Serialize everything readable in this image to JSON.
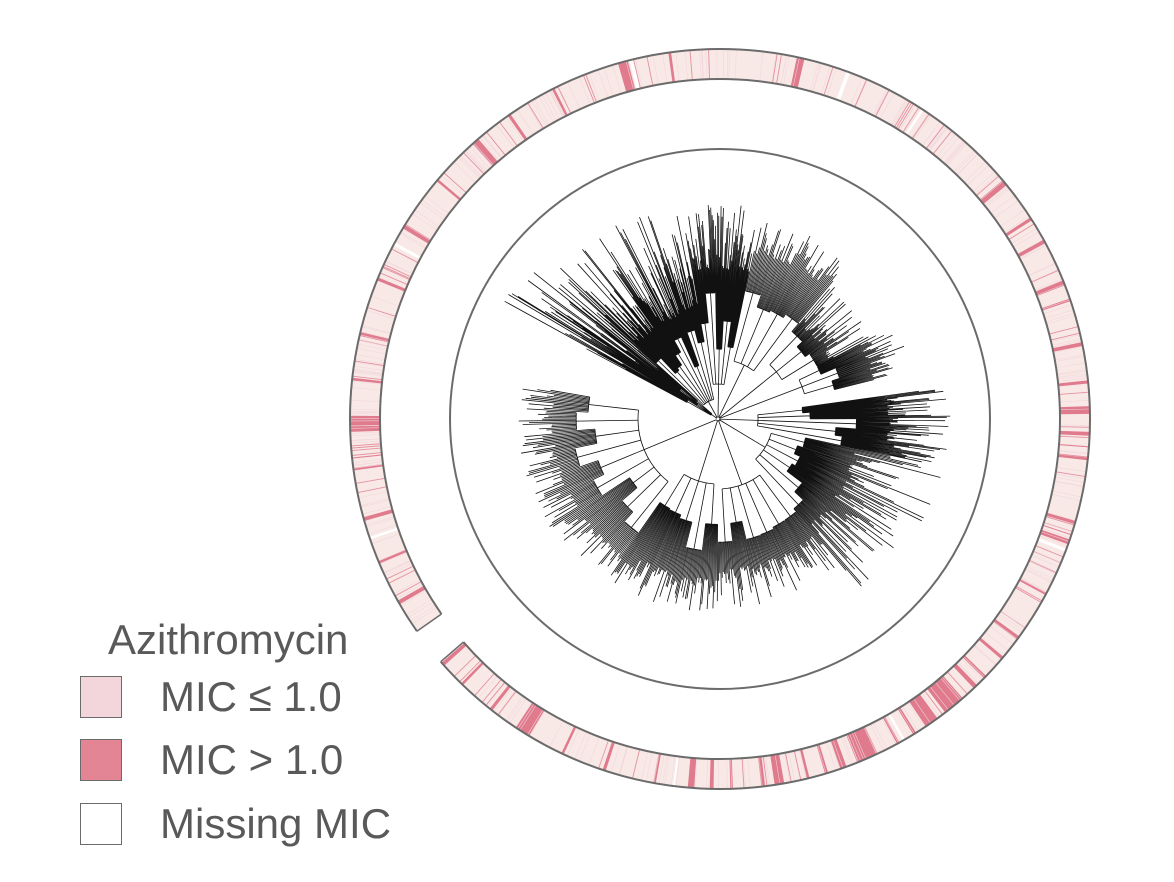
{
  "legend": {
    "title": "Azithromycin",
    "items": [
      {
        "label": "MIC ≤ 1.0",
        "color": "#f2d6dc"
      },
      {
        "label": "MIC > 1.0",
        "color": "#e48595"
      },
      {
        "label": "Missing MIC",
        "color": "#ffffff"
      }
    ]
  },
  "ring": {
    "base_color": "#f8e9e6",
    "high_color": "#e07b8e",
    "low_color": "#f2d6dc",
    "missing_color": "#ffffff",
    "outline_color": "#6b6b6b",
    "gap_start_deg": 229,
    "gap_end_deg": 235,
    "high_mic_arcs_deg": [
      [
        12,
        13.2
      ],
      [
        50,
        50.8
      ],
      [
        57,
        57.5
      ],
      [
        61,
        61.6
      ],
      [
        68,
        68.8
      ],
      [
        71,
        71.4
      ],
      [
        78,
        78.6
      ],
      [
        84,
        84.5
      ],
      [
        88,
        89.2
      ],
      [
        92,
        92.6
      ],
      [
        96,
        96.4
      ],
      [
        106,
        106.5
      ],
      [
        109,
        109.8
      ],
      [
        118,
        118.4
      ],
      [
        126,
        126.6
      ],
      [
        130,
        130.5
      ],
      [
        134,
        134.4
      ],
      [
        136,
        136.7
      ],
      [
        139,
        142.5
      ],
      [
        144,
        146.2
      ],
      [
        148,
        148.5
      ],
      [
        151,
        151.4
      ],
      [
        155,
        158
      ],
      [
        160,
        161
      ],
      [
        163,
        163.5
      ],
      [
        166,
        166.4
      ],
      [
        170,
        171.5
      ],
      [
        173,
        173.4
      ],
      [
        178,
        178.4
      ],
      [
        181,
        181.6
      ],
      [
        184,
        185
      ],
      [
        190,
        190.4
      ],
      [
        198,
        198.5
      ],
      [
        205,
        205.4
      ],
      [
        211,
        213.5
      ],
      [
        218,
        218.5
      ],
      [
        224,
        224.4
      ],
      [
        228.2,
        228.8
      ],
      [
        240,
        240.6
      ],
      [
        247,
        247.4
      ],
      [
        254,
        254.6
      ],
      [
        262,
        262.4
      ],
      [
        268,
        270.5
      ],
      [
        276,
        276.4
      ],
      [
        283,
        283.6
      ],
      [
        292,
        292.5
      ],
      [
        301,
        301.8
      ],
      [
        310,
        310.4
      ],
      [
        318,
        319.2
      ],
      [
        325,
        325.5
      ],
      [
        333,
        333.4
      ],
      [
        344,
        345.6
      ],
      [
        352,
        352.4
      ]
    ],
    "missing_arcs_deg": [
      [
        20,
        20.6
      ],
      [
        33,
        33.4
      ],
      [
        110.5,
        111
      ],
      [
        150,
        150.4
      ],
      [
        187,
        187.5
      ],
      [
        251,
        251.4
      ],
      [
        298,
        298.5
      ],
      [
        345.8,
        346.4
      ]
    ]
  }
}
